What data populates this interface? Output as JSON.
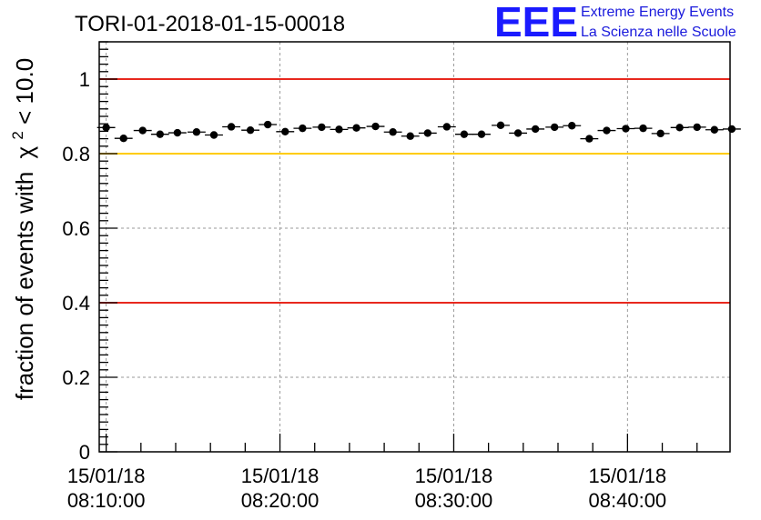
{
  "chart_data": {
    "type": "scatter",
    "title": "TORI-01-2018-01-15-00018",
    "xlabel": "",
    "ylabel": "fraction of events with",
    "ylabel_chi": "χ",
    "ylabel_exp": "2",
    "ylabel_tail": " < 10.0",
    "x_range_min": [
      8,
      9.6
    ],
    "x_range_max": [
      8,
      45.9
    ],
    "ylim": [
      0,
      1.1
    ],
    "yticks": [
      "0",
      "0.2",
      "0.4",
      "0.6",
      "0.8",
      "1"
    ],
    "ytick_values": [
      0,
      0.2,
      0.4,
      0.6,
      0.8,
      1.0
    ],
    "xticks": [
      {
        "date": "15/01/18",
        "time": "08:10:00",
        "minutes": 10
      },
      {
        "date": "15/01/18",
        "time": "08:20:00",
        "minutes": 20
      },
      {
        "date": "15/01/18",
        "time": "08:30:00",
        "minutes": 30
      },
      {
        "date": "15/01/18",
        "time": "08:40:00",
        "minutes": 40
      }
    ],
    "reference_lines": [
      {
        "y": 1.0,
        "color": "#e8281e"
      },
      {
        "y": 0.8,
        "color": "#ffcc00"
      },
      {
        "y": 0.4,
        "color": "#e8281e"
      }
    ],
    "grid": true,
    "bin_width_minutes": 1.04,
    "series": [
      {
        "marker_color": "#000000",
        "points": [
          {
            "x": 10.0,
            "y": 0.87
          },
          {
            "x": 11.0,
            "y": 0.841
          },
          {
            "x": 12.1,
            "y": 0.862
          },
          {
            "x": 13.1,
            "y": 0.852
          },
          {
            "x": 14.1,
            "y": 0.856
          },
          {
            "x": 15.2,
            "y": 0.858
          },
          {
            "x": 16.2,
            "y": 0.85
          },
          {
            "x": 17.2,
            "y": 0.872
          },
          {
            "x": 18.3,
            "y": 0.863
          },
          {
            "x": 19.3,
            "y": 0.878
          },
          {
            "x": 20.3,
            "y": 0.859
          },
          {
            "x": 21.3,
            "y": 0.868
          },
          {
            "x": 22.4,
            "y": 0.871
          },
          {
            "x": 23.4,
            "y": 0.865
          },
          {
            "x": 24.4,
            "y": 0.869
          },
          {
            "x": 25.5,
            "y": 0.873
          },
          {
            "x": 26.5,
            "y": 0.858
          },
          {
            "x": 27.5,
            "y": 0.847
          },
          {
            "x": 28.5,
            "y": 0.855
          },
          {
            "x": 29.6,
            "y": 0.872
          },
          {
            "x": 30.6,
            "y": 0.852
          },
          {
            "x": 31.6,
            "y": 0.852
          },
          {
            "x": 32.7,
            "y": 0.876
          },
          {
            "x": 33.7,
            "y": 0.855
          },
          {
            "x": 34.7,
            "y": 0.866
          },
          {
            "x": 35.8,
            "y": 0.871
          },
          {
            "x": 36.8,
            "y": 0.875
          },
          {
            "x": 37.8,
            "y": 0.84
          },
          {
            "x": 38.8,
            "y": 0.862
          },
          {
            "x": 39.9,
            "y": 0.867
          },
          {
            "x": 40.9,
            "y": 0.868
          },
          {
            "x": 41.9,
            "y": 0.854
          },
          {
            "x": 43.0,
            "y": 0.87
          },
          {
            "x": 44.0,
            "y": 0.871
          },
          {
            "x": 45.0,
            "y": 0.864
          },
          {
            "x": 46.0,
            "y": 0.866
          }
        ]
      }
    ]
  },
  "logo": {
    "mark": "EEE",
    "line1": "Extreme Energy Events",
    "line2": "La Scienza nelle Scuole",
    "color": "#1a1aff"
  }
}
